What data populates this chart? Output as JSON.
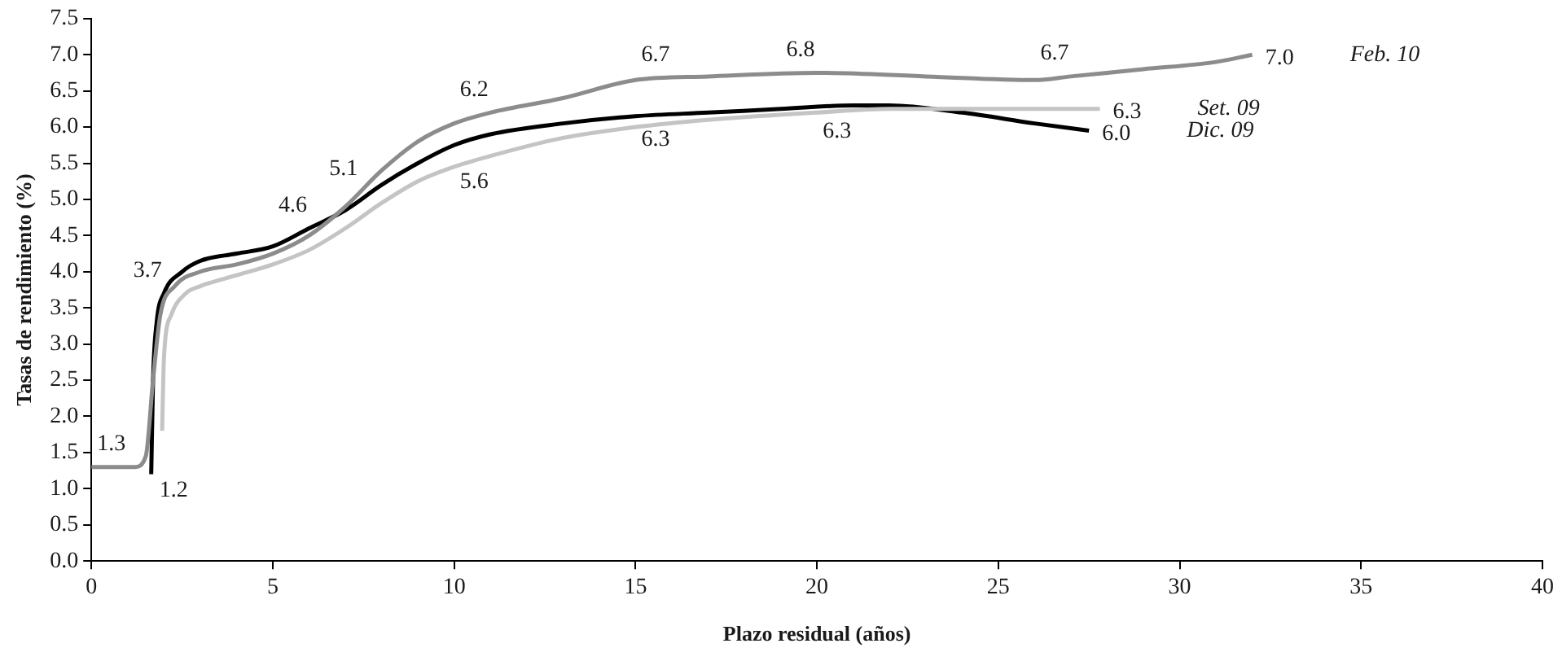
{
  "chart_data": {
    "type": "line",
    "xlabel": "Plazo residual (años)",
    "ylabel": "Tasas de rendimiento (%)",
    "xlim": [
      0,
      40
    ],
    "xticks": [
      0,
      5,
      10,
      15,
      20,
      25,
      30,
      35,
      40
    ],
    "ylim": [
      0,
      7.5
    ],
    "yticks": [
      {
        "value": 0,
        "label": "0.0"
      },
      0.5,
      {
        "value": 1,
        "label": "1.0"
      },
      1.5,
      {
        "value": 2,
        "label": "2.0"
      },
      2.5,
      {
        "value": 3,
        "label": "3.0"
      },
      3.5,
      {
        "value": 4,
        "label": "4.0"
      },
      4.5,
      {
        "value": 5,
        "label": "5.0"
      },
      5.5,
      {
        "value": 6,
        "label": "6.0"
      },
      6.5,
      {
        "value": 7,
        "label": "7.0"
      },
      7.5
    ],
    "grid": false,
    "legend": false,
    "line_style": "solid",
    "series": [
      {
        "name": "Feb. 10",
        "color": "#8c8c8c",
        "x": [
          0,
          1.2,
          1.5,
          1.7,
          1.9,
          2.3,
          3,
          4,
          5,
          6,
          7,
          8,
          9,
          10,
          11,
          13,
          15,
          17,
          20,
          23,
          26,
          27,
          29,
          31,
          32
        ],
        "values": [
          1.3,
          1.3,
          1.45,
          2.5,
          3.4,
          3.8,
          4.0,
          4.1,
          4.25,
          4.5,
          4.9,
          5.4,
          5.8,
          6.05,
          6.2,
          6.4,
          6.65,
          6.7,
          6.75,
          6.7,
          6.65,
          6.7,
          6.8,
          6.9,
          7.0
        ]
      },
      {
        "name": "Set. 09",
        "color": "#c4c4c4",
        "x": [
          1.95,
          2.0,
          2.2,
          2.6,
          3,
          4,
          5,
          6,
          7,
          8,
          9,
          10,
          11,
          13,
          15,
          17,
          20,
          22,
          25,
          27.8
        ],
        "values": [
          1.8,
          2.8,
          3.4,
          3.7,
          3.8,
          3.95,
          4.1,
          4.3,
          4.6,
          4.95,
          5.25,
          5.45,
          5.6,
          5.85,
          6.0,
          6.1,
          6.2,
          6.25,
          6.25,
          6.25
        ]
      },
      {
        "name": "Dic. 09",
        "color": "#000000",
        "x": [
          1.65,
          1.7,
          1.8,
          2,
          2.5,
          3,
          4,
          5,
          6,
          7,
          8,
          9,
          10,
          11,
          13,
          15,
          17,
          19,
          21,
          22,
          24,
          26,
          27.5
        ],
        "values": [
          1.2,
          2.5,
          3.3,
          3.7,
          4.0,
          4.15,
          4.25,
          4.35,
          4.6,
          4.85,
          5.2,
          5.5,
          5.75,
          5.9,
          6.05,
          6.15,
          6.2,
          6.25,
          6.3,
          6.3,
          6.2,
          6.05,
          5.95
        ]
      }
    ],
    "annotations": [
      {
        "text": "1.3",
        "x": 1,
        "y": 1.3
      },
      {
        "text": "1.2",
        "x": 1.65,
        "y": 1.2
      },
      {
        "text": "3.7",
        "x": 2,
        "y": 3.7
      },
      {
        "text": "4.6",
        "x": 6,
        "y": 4.6
      },
      {
        "text": "5.1",
        "x": 7.4,
        "y": 5.1
      },
      {
        "text": "6.2",
        "x": 11,
        "y": 6.2
      },
      {
        "text": "5.6",
        "x": 11,
        "y": 5.6
      },
      {
        "text": "6.7",
        "x": 16,
        "y": 6.68
      },
      {
        "text": "6.8",
        "x": 20,
        "y": 6.75
      },
      {
        "text": "6.3",
        "x": 16,
        "y": 6.18
      },
      {
        "text": "6.3",
        "x": 21,
        "y": 6.3
      },
      {
        "text": "6.7",
        "x": 27,
        "y": 6.7
      },
      {
        "text": "7.0",
        "x": 32,
        "y": 7.0
      },
      {
        "text": "6.3",
        "x": 27.8,
        "y": 6.25
      },
      {
        "text": "6.0",
        "x": 27.5,
        "y": 5.95
      }
    ]
  }
}
